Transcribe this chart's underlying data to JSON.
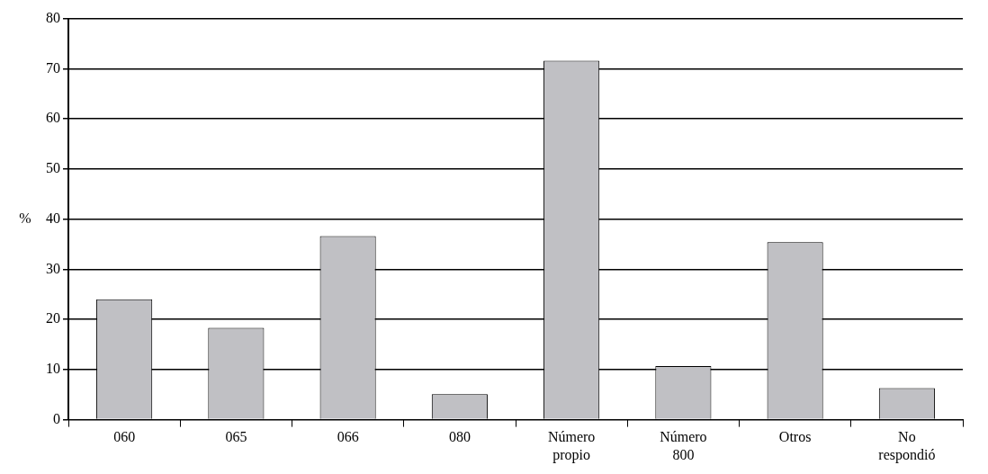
{
  "chart_data": {
    "type": "bar",
    "ylabel": "%",
    "categories": [
      "060",
      "065",
      "066",
      "080",
      "Número propio",
      "Número 800",
      "Otros",
      "No respondió"
    ],
    "values": [
      24,
      18.3,
      36.6,
      5.1,
      71.6,
      10.7,
      35.4,
      6.3
    ],
    "color": "#c0c0c4",
    "ylim": [
      0,
      80
    ],
    "yticks": [
      0,
      10,
      20,
      30,
      40,
      50,
      60,
      70,
      80
    ],
    "grid": "y",
    "legend": false
  }
}
